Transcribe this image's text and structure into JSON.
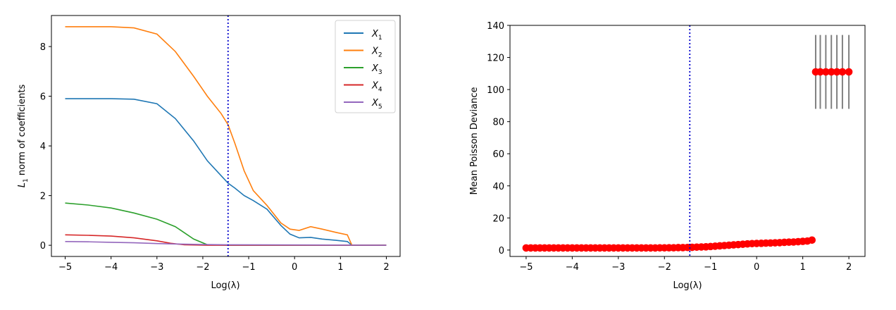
{
  "chart_data": [
    {
      "type": "line",
      "xlabel": "Log(λ)",
      "ylabel": "L1 norm of coefficients",
      "xlim": [
        -5.3,
        2.3
      ],
      "ylim": [
        -0.45,
        9.25
      ],
      "xticks": [
        -5,
        -4,
        -3,
        -2,
        -1,
        0,
        1,
        2
      ],
      "yticks": [
        0,
        2,
        4,
        6,
        8
      ],
      "grid": false,
      "legend_position": "top-right",
      "reference_line": {
        "x": -1.45,
        "color": "#0000cc",
        "style": "dotted"
      },
      "series": [
        {
          "name": "X1",
          "legend_base": "X",
          "legend_sub": "1",
          "color": "#1f77b4",
          "x": [
            -5,
            -4.5,
            -4,
            -3.5,
            -3,
            -2.6,
            -2.2,
            -1.9,
            -1.6,
            -1.45,
            -1.3,
            -1.1,
            -0.9,
            -0.6,
            -0.3,
            -0.1,
            0.1,
            0.35,
            0.6,
            0.9,
            1.15,
            1.25,
            2.0
          ],
          "y": [
            5.9,
            5.9,
            5.9,
            5.88,
            5.7,
            5.1,
            4.2,
            3.4,
            2.8,
            2.5,
            2.3,
            2.0,
            1.8,
            1.45,
            0.8,
            0.45,
            0.3,
            0.32,
            0.25,
            0.2,
            0.15,
            0.0,
            0.0
          ]
        },
        {
          "name": "X2",
          "legend_base": "X",
          "legend_sub": "2",
          "color": "#ff7f0e",
          "x": [
            -5,
            -4.5,
            -4,
            -3.5,
            -3,
            -2.6,
            -2.2,
            -1.9,
            -1.6,
            -1.45,
            -1.3,
            -1.1,
            -0.9,
            -0.6,
            -0.3,
            -0.1,
            0.1,
            0.35,
            0.6,
            0.9,
            1.15,
            1.25,
            2.0
          ],
          "y": [
            8.8,
            8.8,
            8.8,
            8.75,
            8.5,
            7.8,
            6.8,
            6.0,
            5.3,
            4.85,
            4.1,
            3.0,
            2.2,
            1.6,
            0.9,
            0.65,
            0.6,
            0.75,
            0.65,
            0.52,
            0.42,
            0.0,
            0.0
          ]
        },
        {
          "name": "X3",
          "legend_base": "X",
          "legend_sub": "3",
          "color": "#2ca02c",
          "x": [
            -5,
            -4.5,
            -4,
            -3.5,
            -3,
            -2.6,
            -2.2,
            -1.9,
            -1.6,
            -1.45,
            2.0
          ],
          "y": [
            1.7,
            1.62,
            1.5,
            1.3,
            1.05,
            0.75,
            0.25,
            0.02,
            0.01,
            0.0,
            0.0
          ]
        },
        {
          "name": "X4",
          "legend_base": "X",
          "legend_sub": "4",
          "color": "#d62728",
          "x": [
            -5,
            -4.5,
            -4,
            -3.5,
            -3,
            -2.7,
            -2.4,
            -2.1,
            -1.9,
            2.0
          ],
          "y": [
            0.42,
            0.4,
            0.37,
            0.3,
            0.18,
            0.08,
            0.02,
            0.01,
            0.0,
            0.0
          ]
        },
        {
          "name": "X5",
          "legend_base": "X",
          "legend_sub": "5",
          "color": "#9467bd",
          "x": [
            -5,
            -4.5,
            -4,
            -3.5,
            -3,
            -2.5,
            -2,
            -1.5,
            2.0
          ],
          "y": [
            0.15,
            0.14,
            0.12,
            0.1,
            0.07,
            0.05,
            0.03,
            0.02,
            0.0
          ]
        }
      ]
    },
    {
      "type": "scatter",
      "xlabel": "Log(λ)",
      "ylabel": "Mean Poisson Deviance",
      "xlim": [
        -5.35,
        2.35
      ],
      "ylim": [
        -4,
        140
      ],
      "xticks": [
        -5,
        -4,
        -3,
        -2,
        -1,
        0,
        1,
        2
      ],
      "yticks": [
        0,
        20,
        40,
        60,
        80,
        100,
        120,
        140
      ],
      "grid": false,
      "reference_line": {
        "x": -1.45,
        "color": "#0000cc",
        "style": "dotted"
      },
      "marker_color": "#ff0000",
      "errorbar_color": "#808080",
      "points": [
        {
          "x": -5.0,
          "y": 1.3
        },
        {
          "x": -4.9,
          "y": 1.3
        },
        {
          "x": -4.8,
          "y": 1.3
        },
        {
          "x": -4.7,
          "y": 1.3
        },
        {
          "x": -4.6,
          "y": 1.3
        },
        {
          "x": -4.5,
          "y": 1.3
        },
        {
          "x": -4.4,
          "y": 1.3
        },
        {
          "x": -4.3,
          "y": 1.3
        },
        {
          "x": -4.2,
          "y": 1.3
        },
        {
          "x": -4.1,
          "y": 1.3
        },
        {
          "x": -4.0,
          "y": 1.3
        },
        {
          "x": -3.9,
          "y": 1.3
        },
        {
          "x": -3.8,
          "y": 1.3
        },
        {
          "x": -3.7,
          "y": 1.3
        },
        {
          "x": -3.6,
          "y": 1.3
        },
        {
          "x": -3.5,
          "y": 1.3
        },
        {
          "x": -3.4,
          "y": 1.3
        },
        {
          "x": -3.3,
          "y": 1.3
        },
        {
          "x": -3.2,
          "y": 1.3
        },
        {
          "x": -3.1,
          "y": 1.3
        },
        {
          "x": -3.0,
          "y": 1.3
        },
        {
          "x": -2.9,
          "y": 1.3
        },
        {
          "x": -2.8,
          "y": 1.3
        },
        {
          "x": -2.7,
          "y": 1.3
        },
        {
          "x": -2.6,
          "y": 1.3
        },
        {
          "x": -2.5,
          "y": 1.3
        },
        {
          "x": -2.4,
          "y": 1.3
        },
        {
          "x": -2.3,
          "y": 1.3
        },
        {
          "x": -2.2,
          "y": 1.3
        },
        {
          "x": -2.1,
          "y": 1.35
        },
        {
          "x": -2.0,
          "y": 1.35
        },
        {
          "x": -1.9,
          "y": 1.4
        },
        {
          "x": -1.8,
          "y": 1.4
        },
        {
          "x": -1.7,
          "y": 1.5
        },
        {
          "x": -1.6,
          "y": 1.5
        },
        {
          "x": -1.5,
          "y": 1.6
        },
        {
          "x": -1.4,
          "y": 1.7
        },
        {
          "x": -1.3,
          "y": 1.8
        },
        {
          "x": -1.2,
          "y": 1.9
        },
        {
          "x": -1.1,
          "y": 2.0
        },
        {
          "x": -1.0,
          "y": 2.2
        },
        {
          "x": -0.9,
          "y": 2.4
        },
        {
          "x": -0.8,
          "y": 2.6
        },
        {
          "x": -0.7,
          "y": 2.8
        },
        {
          "x": -0.6,
          "y": 3.0
        },
        {
          "x": -0.5,
          "y": 3.2
        },
        {
          "x": -0.4,
          "y": 3.4
        },
        {
          "x": -0.3,
          "y": 3.6
        },
        {
          "x": -0.2,
          "y": 3.8
        },
        {
          "x": -0.1,
          "y": 4.0
        },
        {
          "x": 0.0,
          "y": 4.1
        },
        {
          "x": 0.1,
          "y": 4.2
        },
        {
          "x": 0.2,
          "y": 4.3
        },
        {
          "x": 0.3,
          "y": 4.4
        },
        {
          "x": 0.4,
          "y": 4.5
        },
        {
          "x": 0.5,
          "y": 4.6
        },
        {
          "x": 0.6,
          "y": 4.8
        },
        {
          "x": 0.7,
          "y": 4.9
        },
        {
          "x": 0.8,
          "y": 5.0
        },
        {
          "x": 0.9,
          "y": 5.2
        },
        {
          "x": 1.0,
          "y": 5.4
        },
        {
          "x": 1.1,
          "y": 5.6
        },
        {
          "x": 1.2,
          "y": 6.2
        },
        {
          "x": 1.28,
          "y": 111
        },
        {
          "x": 1.38,
          "y": 111
        },
        {
          "x": 1.5,
          "y": 111
        },
        {
          "x": 1.62,
          "y": 111
        },
        {
          "x": 1.74,
          "y": 111
        },
        {
          "x": 1.86,
          "y": 111
        },
        {
          "x": 2.0,
          "y": 111
        }
      ],
      "error_bars": [
        {
          "x": 1.28,
          "low": 88,
          "high": 134
        },
        {
          "x": 1.38,
          "low": 88,
          "high": 134
        },
        {
          "x": 1.5,
          "low": 88,
          "high": 134
        },
        {
          "x": 1.62,
          "low": 88,
          "high": 134
        },
        {
          "x": 1.74,
          "low": 88,
          "high": 134
        },
        {
          "x": 1.86,
          "low": 88,
          "high": 134
        },
        {
          "x": 2.0,
          "low": 88,
          "high": 134
        }
      ]
    }
  ]
}
